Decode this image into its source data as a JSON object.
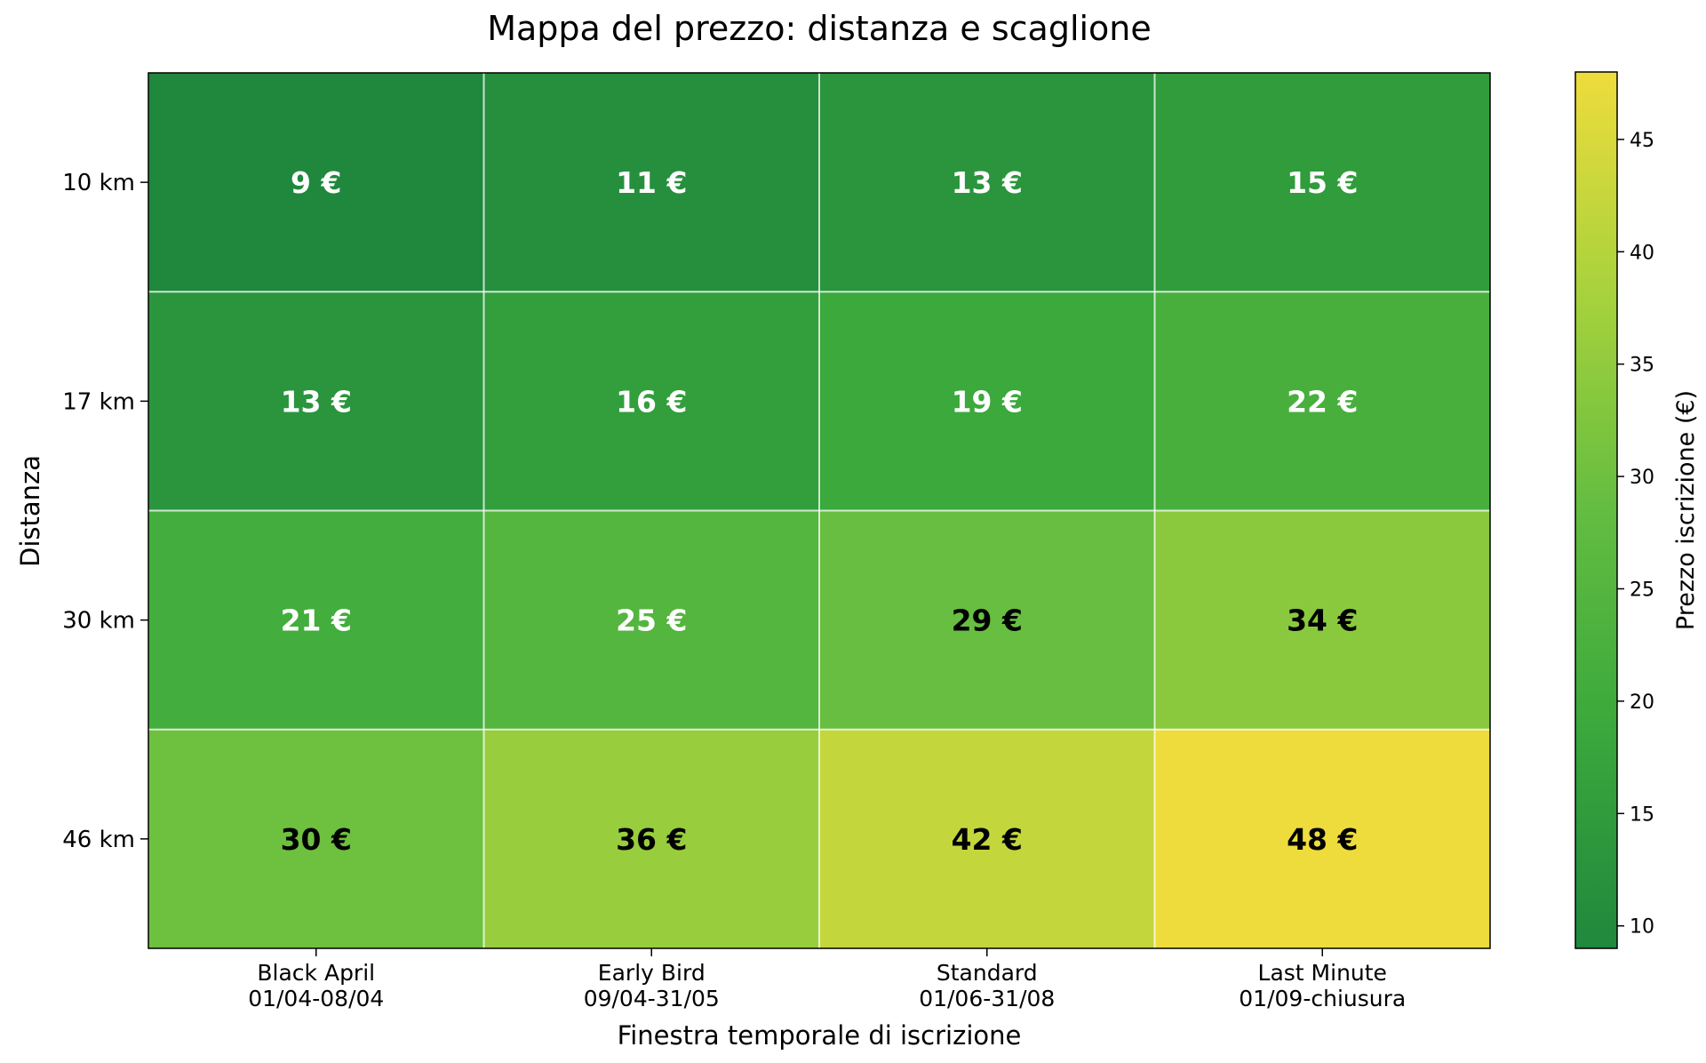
{
  "chart_data": {
    "type": "heatmap",
    "title": "Mappa del prezzo: distanza e scaglione",
    "xlabel": "Finestra temporale di iscrizione",
    "ylabel": "Distanza",
    "x_categories": [
      [
        "Black April",
        "01/04-08/04"
      ],
      [
        "Early Bird",
        "09/04-31/05"
      ],
      [
        "Standard",
        "01/06-31/08"
      ],
      [
        "Last Minute",
        "01/09-chiusura"
      ]
    ],
    "y_categories": [
      "10 km",
      "17 km",
      "30 km",
      "46 km"
    ],
    "values": [
      [
        9,
        11,
        13,
        15
      ],
      [
        13,
        16,
        19,
        22
      ],
      [
        21,
        25,
        29,
        34
      ],
      [
        30,
        36,
        42,
        48
      ]
    ],
    "cell_labels": [
      [
        "9 €",
        "11 €",
        "13 €",
        "15 €"
      ],
      [
        "13 €",
        "16 €",
        "19 €",
        "22 €"
      ],
      [
        "21 €",
        "25 €",
        "29 €",
        "34 €"
      ],
      [
        "30 €",
        "36 €",
        "42 €",
        "48 €"
      ]
    ],
    "colorbar": {
      "label": "Prezzo iscrizione (€)",
      "range": [
        9,
        48
      ],
      "ticks": [
        10,
        15,
        20,
        25,
        30,
        35,
        40,
        45
      ],
      "colors": [
        "#1f883d",
        "#3aa83c",
        "#63bd40",
        "#a8d23c",
        "#eedc3c"
      ]
    },
    "grid": true
  }
}
